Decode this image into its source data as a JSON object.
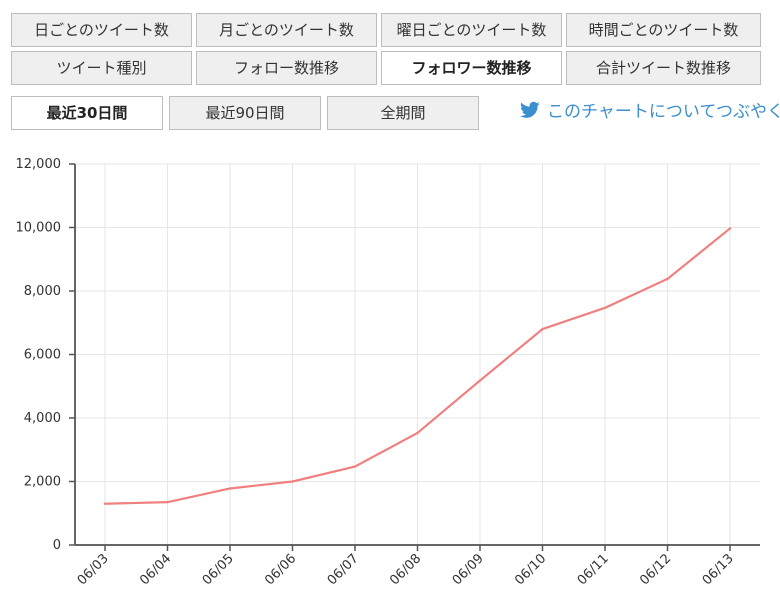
{
  "tabs": {
    "row1": [
      "日ごとのツイート数",
      "月ごとのツイート数",
      "曜日ごとのツイート数",
      "時間ごとのツイート数"
    ],
    "row2": [
      "ツイート種別",
      "フォロー数推移",
      "フォロワー数推移",
      "合計ツイート数推移"
    ],
    "active": "フォロワー数推移"
  },
  "periods": {
    "items": [
      "最近30日間",
      "最近90日間",
      "全期間"
    ],
    "active": "最近30日間"
  },
  "tweet_link": {
    "label": "このチャートについてつぶやく",
    "icon": "twitter-bird-icon",
    "color": "#3a8fcf"
  },
  "chart_data": {
    "type": "line",
    "categories": [
      "06/03",
      "06/04",
      "06/05",
      "06/06",
      "06/07",
      "06/08",
      "06/09",
      "06/10",
      "06/11",
      "06/12",
      "06/13"
    ],
    "series": [
      {
        "values": [
          1300,
          1350,
          1780,
          2000,
          2470,
          3530,
          5180,
          6800,
          7470,
          8380,
          9970
        ],
        "color": "#f08080"
      }
    ],
    "ylim": [
      0,
      12000
    ],
    "yticks": [
      "0",
      "2,000",
      "4,000",
      "6,000",
      "8,000",
      "10,000",
      "12,000"
    ],
    "title": "",
    "xlabel": "",
    "ylabel": "",
    "grid": true
  }
}
